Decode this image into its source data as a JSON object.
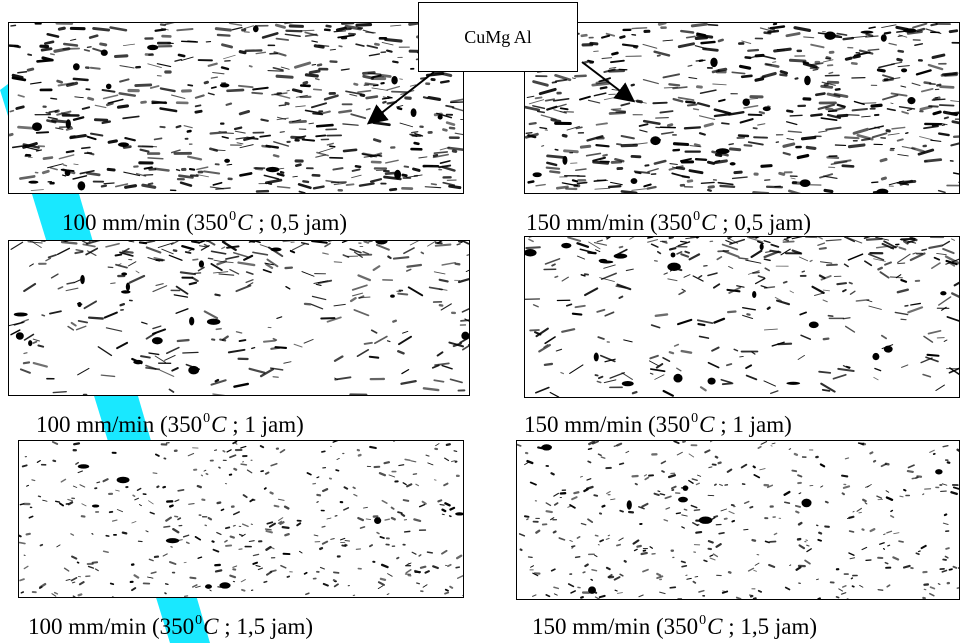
{
  "callout": {
    "label": "CuMg Al"
  },
  "panels": [
    {
      "speed": "100 mm/min",
      "temp": "350",
      "deg": "0",
      "unit": "C",
      "duration": "0,5 jam",
      "density": "high"
    },
    {
      "speed": "150 mm/min",
      "temp": "350",
      "deg": "0",
      "unit": "C",
      "duration": "0,5 jam",
      "density": "high"
    },
    {
      "speed": "100 mm/min",
      "temp": "350",
      "deg": "0",
      "unit": "C",
      "duration": "1 jam",
      "density": "medium"
    },
    {
      "speed": "150 mm/min",
      "temp": "350",
      "deg": "0",
      "unit": "C",
      "duration": "1 jam",
      "density": "medium"
    },
    {
      "speed": "100 mm/min",
      "temp": "350",
      "deg": "0",
      "unit": "C",
      "duration": "1,5 jam",
      "density": "low"
    },
    {
      "speed": "150 mm/min",
      "temp": "350",
      "deg": "0",
      "unit": "C",
      "duration": "1,5 jam",
      "density": "low"
    }
  ],
  "colors": {
    "ink": "#000000",
    "accent_stripe": "#00e5ff"
  }
}
